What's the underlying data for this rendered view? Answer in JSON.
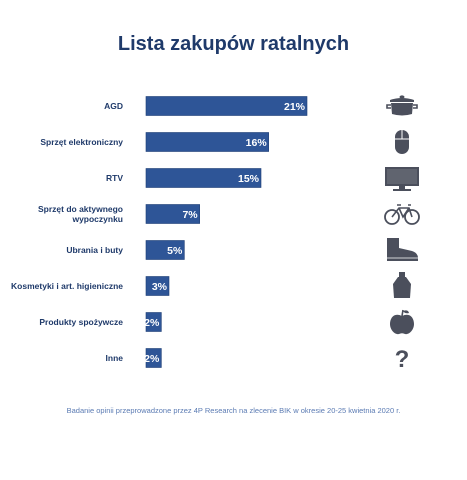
{
  "chart_data": {
    "type": "bar",
    "orientation": "horizontal",
    "title": "Lista zakupów ratalnych",
    "categories": [
      "AGD",
      "Sprzęt elektroniczny",
      "RTV",
      "Sprzęt do aktywnego wypoczynku",
      "Ubrania i buty",
      "Kosmetyki i art. higieniczne",
      "Produkty spożywcze",
      "Inne"
    ],
    "category_lines": [
      [
        "AGD"
      ],
      [
        "Sprzęt elektroniczny"
      ],
      [
        "RTV"
      ],
      [
        "Sprzęt do aktywnego",
        "wypoczynku"
      ],
      [
        "Ubrania i buty"
      ],
      [
        "Kosmetyki i art. higieniczne"
      ],
      [
        "Produkty spożywcze"
      ],
      [
        "Inne"
      ]
    ],
    "values": [
      21,
      16,
      15,
      7,
      5,
      3,
      2,
      2
    ],
    "value_labels": [
      "21%",
      "16%",
      "15%",
      "7%",
      "5%",
      "3%",
      "2%",
      "2%"
    ],
    "icons": [
      "pot-icon",
      "computer-mouse-icon",
      "tv-icon",
      "bicycle-icon",
      "boot-icon",
      "perfume-bottle-icon",
      "apple-icon",
      "question-mark-icon"
    ],
    "xlim": [
      0,
      21
    ],
    "grid": false,
    "legend": "none",
    "colors": {
      "bar": "#2e5597",
      "bar_edge": "#1d3d75",
      "icon": "#4b4f5c",
      "text": "#1f3a6a",
      "source": "#5b7bb3"
    }
  },
  "source_note": "Badanie opinii przeprowadzone  przez 4P Research na zlecenie BIK w okresie 20-25 kwietnia 2020 r."
}
